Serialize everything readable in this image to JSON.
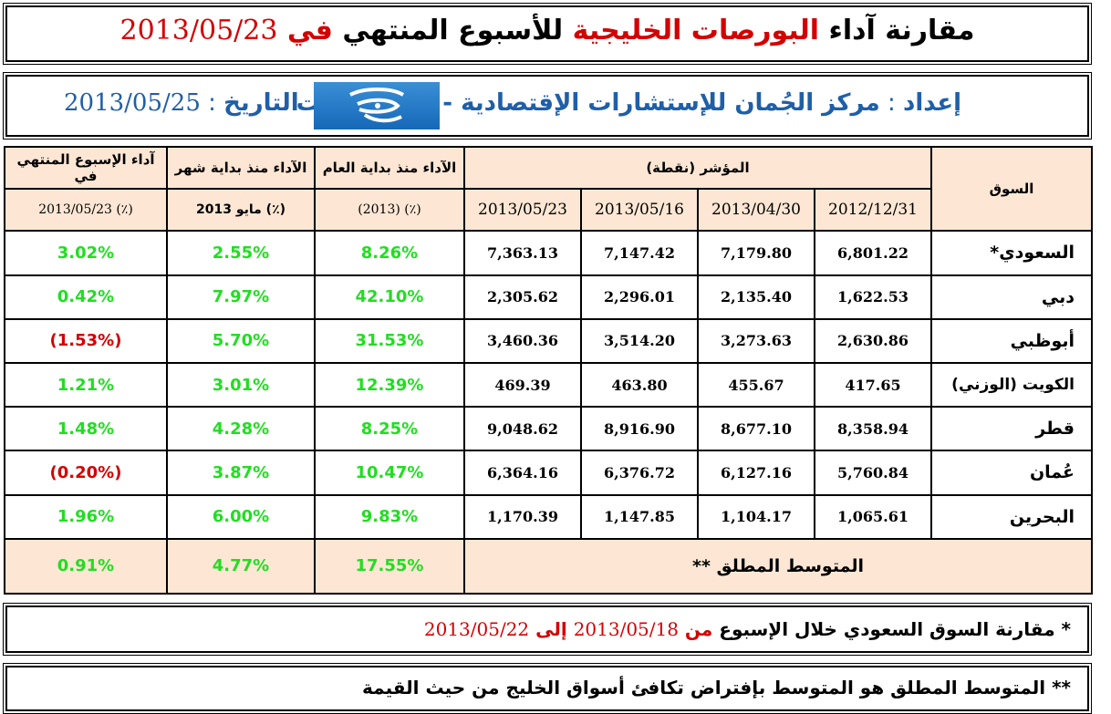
{
  "title": {
    "part1": "مقارنة آداء ",
    "part2": "البورصات الخليجية",
    "part3": " للأسبوع المنتهي ",
    "part4": "في ",
    "date": "2013/05/23"
  },
  "header": {
    "prep_label": "إعداد",
    "prep_colon": " : ",
    "prep_name": "مركز الجُمان للإستشارات الإقتصادية - دولة الكويت",
    "date_label": "التاريخ",
    "date_colon": " : ",
    "date_value": "2013/05/25"
  },
  "table": {
    "col_market": "السوق",
    "col_index": "المؤشر (نقطة)",
    "index_dates": [
      "2012/12/31",
      "2013/04/30",
      "2013/05/16",
      "2013/05/23"
    ],
    "col_ytd": "الآداء منذ بداية العام",
    "col_ytd_sub": "(2013) (٪)",
    "col_mtd": "الآداء منذ بداية شهر",
    "col_mtd_sub": "مايو 2013 (٪)",
    "col_week": "آداء الإسبوع المنتهي في",
    "col_week_sub": "2013/05/23 (٪)",
    "rows": [
      {
        "market": "السعودي*",
        "v1": "6,801.22",
        "v2": "7,179.80",
        "v3": "7,147.42",
        "v4": "7,363.13",
        "ytd": "8.26%",
        "mtd": "2.55%",
        "week": "3.02%",
        "week_neg": false
      },
      {
        "market": "دبي",
        "v1": "1,622.53",
        "v2": "2,135.40",
        "v3": "2,296.01",
        "v4": "2,305.62",
        "ytd": "42.10%",
        "mtd": "7.97%",
        "week": "0.42%",
        "week_neg": false
      },
      {
        "market": "أبوظبي",
        "v1": "2,630.86",
        "v2": "3,273.63",
        "v3": "3,514.20",
        "v4": "3,460.36",
        "ytd": "31.53%",
        "mtd": "5.70%",
        "week": "(1.53%)",
        "week_neg": true
      },
      {
        "market": "الكويت (الوزني)",
        "v1": "417.65",
        "v2": "455.67",
        "v3": "463.80",
        "v4": "469.39",
        "ytd": "12.39%",
        "mtd": "3.01%",
        "week": "1.21%",
        "week_neg": false
      },
      {
        "market": "قطر",
        "v1": "8,358.94",
        "v2": "8,677.10",
        "v3": "8,916.90",
        "v4": "9,048.62",
        "ytd": "8.25%",
        "mtd": "4.28%",
        "week": "1.48%",
        "week_neg": false
      },
      {
        "market": "عُمان",
        "v1": "5,760.84",
        "v2": "6,127.16",
        "v3": "6,376.72",
        "v4": "6,364.16",
        "ytd": "10.47%",
        "mtd": "3.87%",
        "week": "(0.20%)",
        "week_neg": true
      },
      {
        "market": "البحرين",
        "v1": "1,065.61",
        "v2": "1,104.17",
        "v3": "1,147.85",
        "v4": "1,170.39",
        "ytd": "9.83%",
        "mtd": "6.00%",
        "week": "1.96%",
        "week_neg": false
      }
    ],
    "footer": {
      "label": "المتوسط المطلق **",
      "ytd": "17.55%",
      "mtd": "4.77%",
      "week": "0.91%"
    }
  },
  "notes": {
    "note1_star": "* ",
    "note1_text": "مقارنة السوق السعودي خلال الإسبوع ",
    "note1_from": "من ",
    "note1_date1": "2013/05/18",
    "note1_to": " إلى ",
    "note1_date2": "2013/05/22",
    "note2": "** المتوسط المطلق هو المتوسط بإفتراض تكافئ أسواق الخليج من حيث القيمة"
  },
  "colors": {
    "positive": "#22dd22",
    "negative": "#d40000",
    "header_bg": "#fde7d4",
    "title_accent": "#d40000",
    "header_text": "#1f5fa8"
  }
}
